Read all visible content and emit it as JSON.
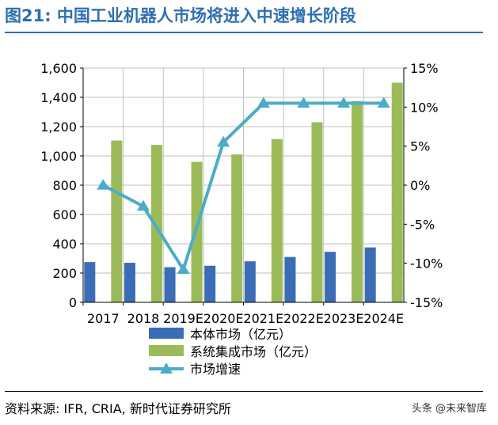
{
  "title": "图21: 中国工业机器人市场将进入中速增长阶段",
  "source": "资料来源: IFR, CRIA, 新时代证券研究所",
  "watermark": "头条 @未来智库",
  "chart_data": {
    "type": "bar",
    "categories": [
      "2017",
      "2018",
      "2019E",
      "2020E",
      "2021E",
      "2022E",
      "2023E",
      "2024E"
    ],
    "series": [
      {
        "name": "本体市场（亿元）",
        "type": "bar",
        "axis": "left",
        "color": "#3a6db5",
        "values": [
          275,
          270,
          240,
          250,
          280,
          310,
          345,
          375
        ]
      },
      {
        "name": "系统集成市场（亿元）",
        "type": "bar",
        "axis": "left",
        "color": "#9bbb59",
        "values": [
          1105,
          1075,
          960,
          1010,
          1115,
          1230,
          1375,
          1500
        ]
      },
      {
        "name": "市场增速",
        "type": "line",
        "axis": "right",
        "color": "#4bacc6",
        "values": [
          0.0,
          -2.7,
          -10.8,
          5.5,
          10.5,
          10.5,
          10.5,
          10.5
        ]
      }
    ],
    "y_left": {
      "min": 0,
      "max": 1600,
      "step": 200,
      "tick_labels": [
        "0",
        "200",
        "400",
        "600",
        "800",
        "1,000",
        "1,200",
        "1,400",
        "1,600"
      ]
    },
    "y_right": {
      "min": -15,
      "max": 15,
      "step": 5,
      "tick_labels": [
        "-15%",
        "-10%",
        "-5%",
        "0%",
        "5%",
        "10%",
        "15%"
      ]
    },
    "grid": true,
    "legend": "bottom"
  }
}
